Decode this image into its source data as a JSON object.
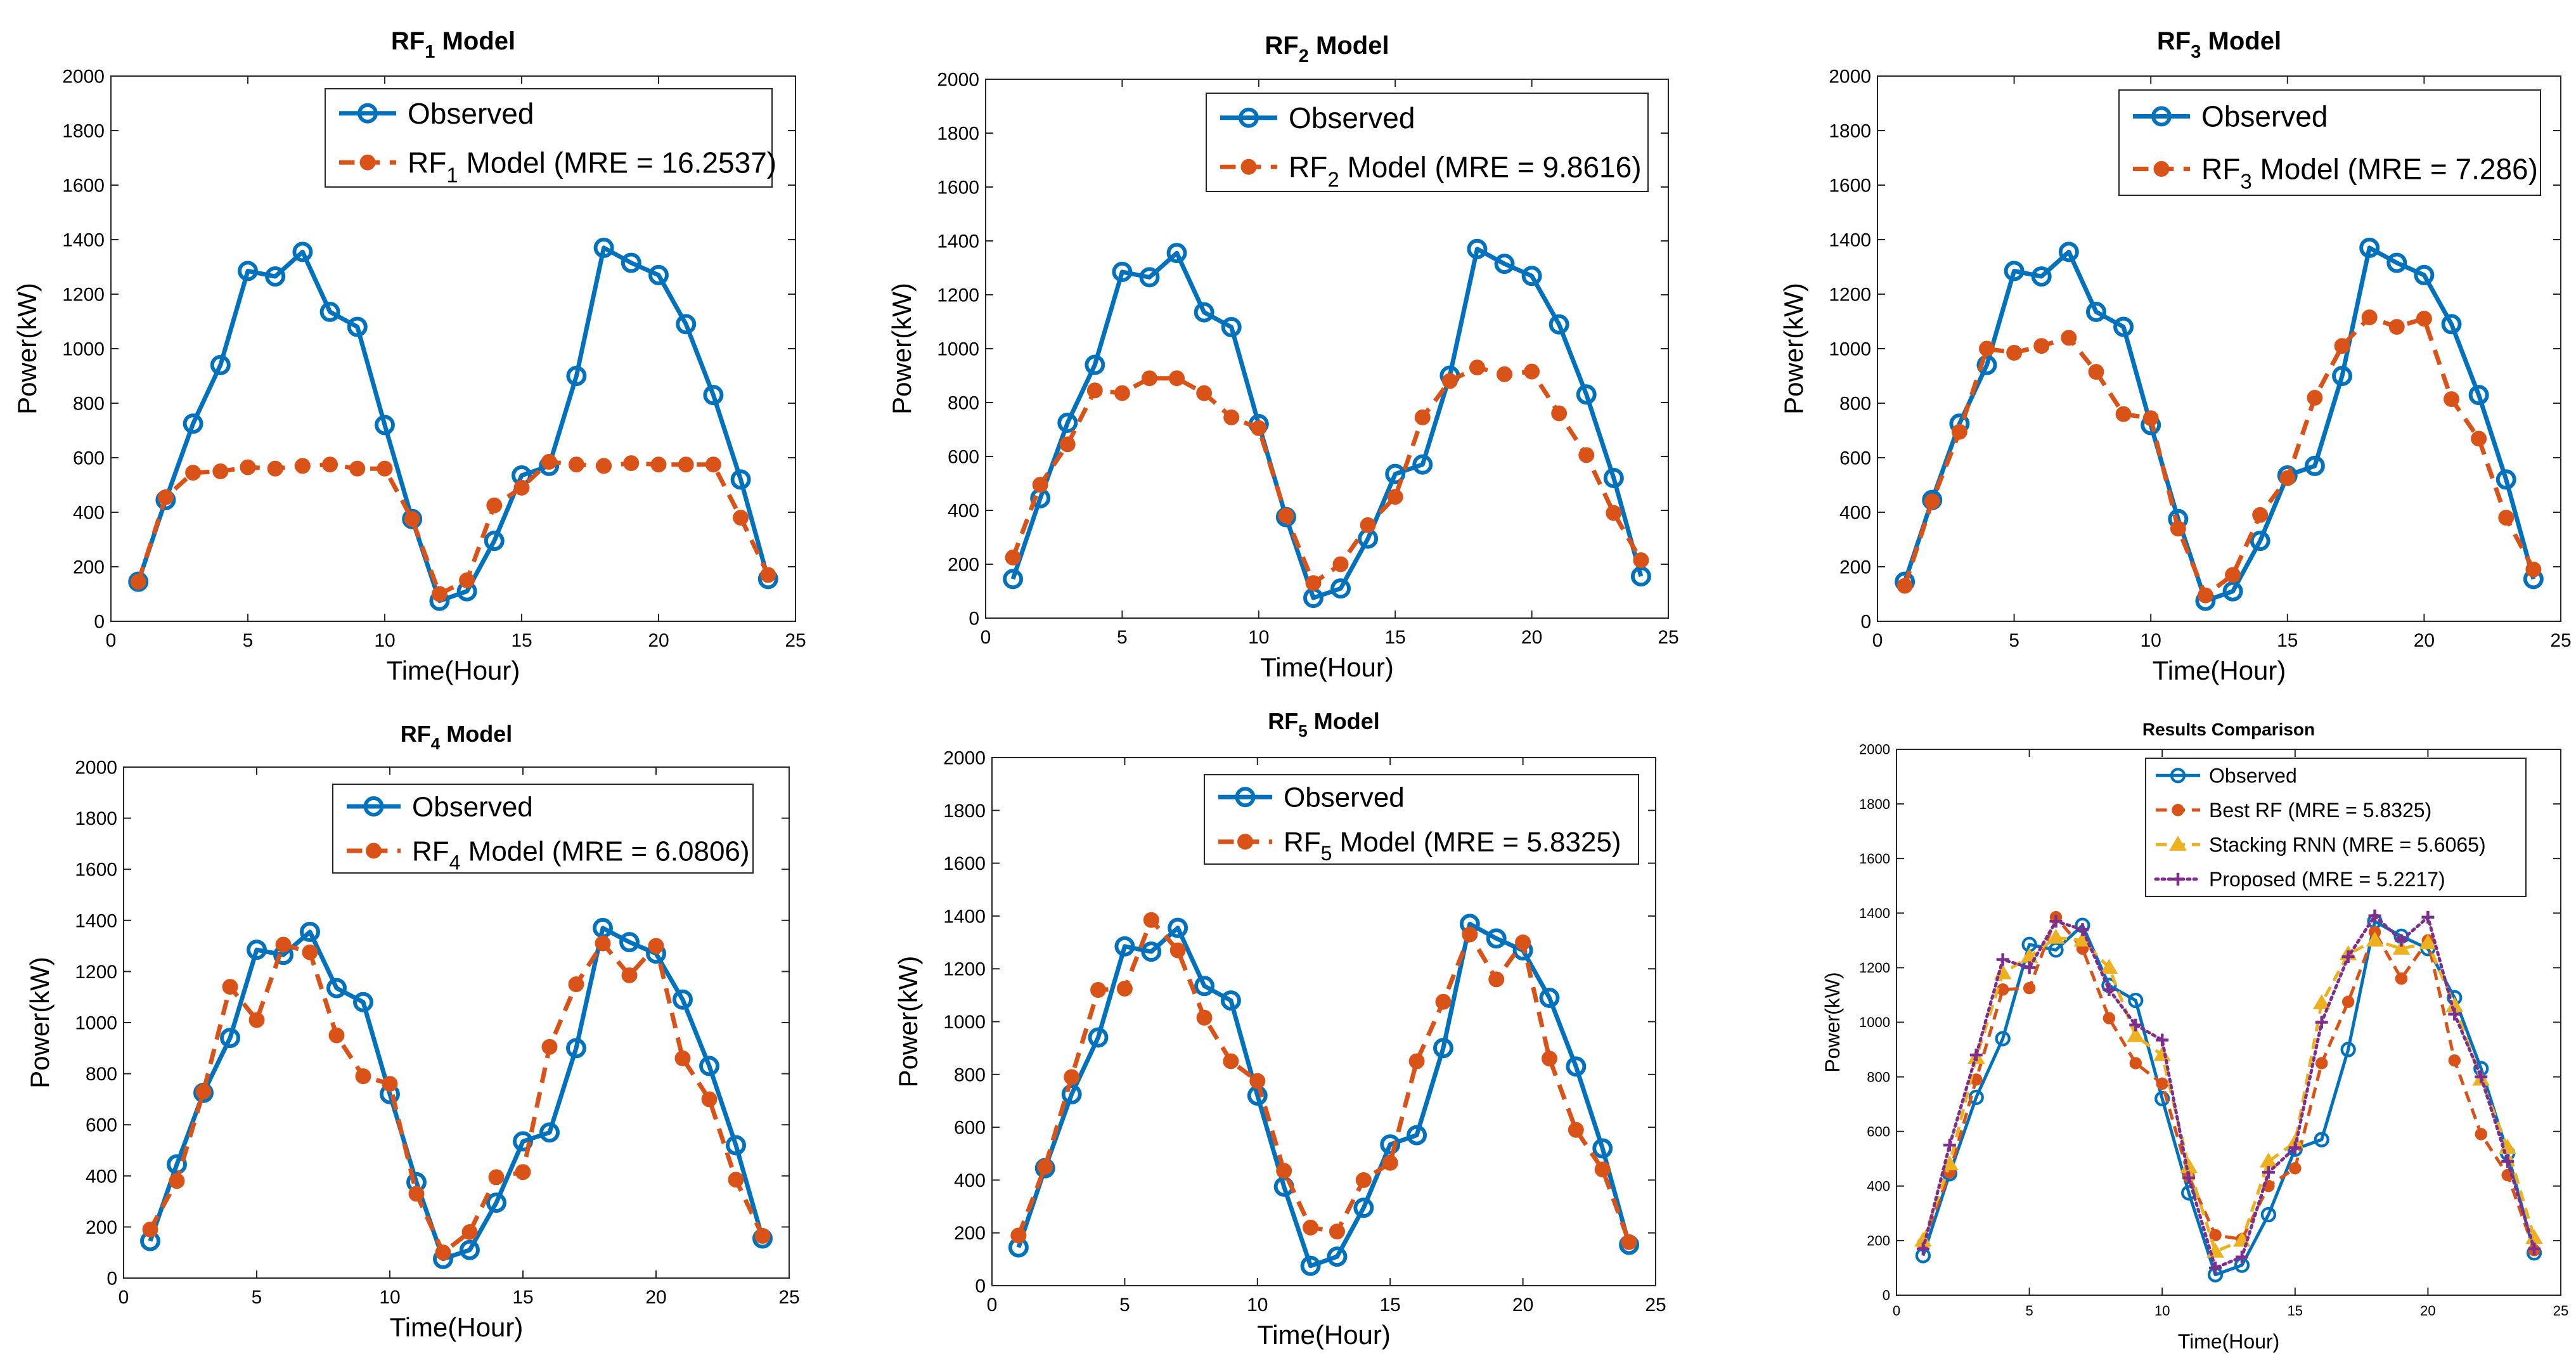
{
  "figure": {
    "panels": 6
  },
  "colors": {
    "observed": "#0072BD",
    "rf": "#D95319",
    "stacking": "#EDB120",
    "proposed": "#7E2F8E",
    "axis": "#262626"
  },
  "chart_data": [
    {
      "type": "line",
      "title": {
        "prefix": "RF",
        "sub": "1",
        "suffix": " Model"
      },
      "xlabel": "Time(Hour)",
      "ylabel": "Power(kW)",
      "xlim": [
        0,
        25
      ],
      "ylim": [
        0,
        2000
      ],
      "xticks": [
        0,
        5,
        10,
        15,
        20,
        25
      ],
      "yticks": [
        0,
        200,
        400,
        600,
        800,
        1000,
        1200,
        1400,
        1600,
        1800,
        2000
      ],
      "legend_location": "top-right",
      "x": [
        1,
        2,
        3,
        4,
        5,
        6,
        7,
        8,
        9,
        10,
        11,
        12,
        13,
        14,
        15,
        16,
        17,
        18,
        19,
        20,
        21,
        22,
        23,
        24
      ],
      "series": [
        {
          "name": "Observed",
          "legend": {
            "prefix": "Observed",
            "sub": "",
            "suffix": ""
          },
          "style": "observed",
          "values": [
            145,
            445,
            725,
            940,
            1285,
            1265,
            1355,
            1135,
            1080,
            720,
            375,
            75,
            110,
            295,
            535,
            570,
            900,
            1370,
            1315,
            1270,
            1090,
            830,
            520,
            155
          ]
        },
        {
          "name": "RF1 Model",
          "legend": {
            "prefix": "RF",
            "sub": "1",
            "suffix": " Model (MRE = 16.2537)"
          },
          "style": "rf",
          "values": [
            145,
            455,
            545,
            550,
            565,
            560,
            570,
            575,
            560,
            560,
            375,
            100,
            150,
            425,
            490,
            585,
            575,
            570,
            580,
            575,
            575,
            575,
            380,
            170
          ]
        }
      ]
    },
    {
      "type": "line",
      "title": {
        "prefix": "RF",
        "sub": "2",
        "suffix": " Model"
      },
      "xlabel": "Time(Hour)",
      "ylabel": "Power(kW)",
      "xlim": [
        0,
        25
      ],
      "ylim": [
        0,
        2000
      ],
      "xticks": [
        0,
        5,
        10,
        15,
        20,
        25
      ],
      "yticks": [
        0,
        200,
        400,
        600,
        800,
        1000,
        1200,
        1400,
        1600,
        1800,
        2000
      ],
      "legend_location": "top-right",
      "x": [
        1,
        2,
        3,
        4,
        5,
        6,
        7,
        8,
        9,
        10,
        11,
        12,
        13,
        14,
        15,
        16,
        17,
        18,
        19,
        20,
        21,
        22,
        23,
        24
      ],
      "series": [
        {
          "name": "Observed",
          "legend": {
            "prefix": "Observed",
            "sub": "",
            "suffix": ""
          },
          "style": "observed",
          "values": [
            145,
            445,
            725,
            940,
            1285,
            1265,
            1355,
            1135,
            1080,
            720,
            375,
            75,
            110,
            295,
            535,
            570,
            900,
            1370,
            1315,
            1270,
            1090,
            830,
            520,
            155
          ]
        },
        {
          "name": "RF2 Model",
          "legend": {
            "prefix": "RF",
            "sub": "2",
            "suffix": " Model (MRE = 9.8616)"
          },
          "style": "rf",
          "values": [
            225,
            495,
            645,
            845,
            835,
            890,
            890,
            835,
            745,
            705,
            380,
            130,
            200,
            345,
            450,
            745,
            880,
            930,
            905,
            915,
            760,
            605,
            390,
            215
          ]
        }
      ]
    },
    {
      "type": "line",
      "title": {
        "prefix": "RF",
        "sub": "3",
        "suffix": " Model"
      },
      "xlabel": "Time(Hour)",
      "ylabel": "Power(kW)",
      "xlim": [
        0,
        25
      ],
      "ylim": [
        0,
        2000
      ],
      "xticks": [
        0,
        5,
        10,
        15,
        20,
        25
      ],
      "yticks": [
        0,
        200,
        400,
        600,
        800,
        1000,
        1200,
        1400,
        1600,
        1800,
        2000
      ],
      "legend_location": "top-right",
      "x": [
        1,
        2,
        3,
        4,
        5,
        6,
        7,
        8,
        9,
        10,
        11,
        12,
        13,
        14,
        15,
        16,
        17,
        18,
        19,
        20,
        21,
        22,
        23,
        24
      ],
      "series": [
        {
          "name": "Observed",
          "legend": {
            "prefix": "Observed",
            "sub": "",
            "suffix": ""
          },
          "style": "observed",
          "values": [
            145,
            445,
            725,
            940,
            1285,
            1265,
            1355,
            1135,
            1080,
            720,
            375,
            75,
            110,
            295,
            535,
            570,
            900,
            1370,
            1315,
            1270,
            1090,
            830,
            520,
            155
          ]
        },
        {
          "name": "RF3 Model",
          "legend": {
            "prefix": "RF",
            "sub": "3",
            "suffix": " Model (MRE = 7.286)"
          },
          "style": "rf",
          "values": [
            130,
            440,
            695,
            1000,
            985,
            1010,
            1040,
            915,
            760,
            745,
            340,
            95,
            170,
            390,
            525,
            820,
            1010,
            1115,
            1080,
            1110,
            815,
            670,
            380,
            190
          ]
        }
      ]
    },
    {
      "type": "line",
      "title": {
        "prefix": "RF",
        "sub": "4",
        "suffix": " Model"
      },
      "xlabel": "Time(Hour)",
      "ylabel": "Power(kW)",
      "xlim": [
        0,
        25
      ],
      "ylim": [
        0,
        2000
      ],
      "xticks": [
        0,
        5,
        10,
        15,
        20,
        25
      ],
      "yticks": [
        0,
        200,
        400,
        600,
        800,
        1000,
        1200,
        1400,
        1600,
        1800,
        2000
      ],
      "legend_location": "top-right",
      "x": [
        1,
        2,
        3,
        4,
        5,
        6,
        7,
        8,
        9,
        10,
        11,
        12,
        13,
        14,
        15,
        16,
        17,
        18,
        19,
        20,
        21,
        22,
        23,
        24
      ],
      "series": [
        {
          "name": "Observed",
          "legend": {
            "prefix": "Observed",
            "sub": "",
            "suffix": ""
          },
          "style": "observed",
          "values": [
            145,
            445,
            725,
            940,
            1285,
            1265,
            1355,
            1135,
            1080,
            720,
            375,
            75,
            110,
            295,
            535,
            570,
            900,
            1370,
            1315,
            1270,
            1090,
            830,
            520,
            155
          ]
        },
        {
          "name": "RF4 Model",
          "legend": {
            "prefix": "RF",
            "sub": "4",
            "suffix": " Model (MRE = 6.0806)"
          },
          "style": "rf",
          "values": [
            190,
            380,
            730,
            1140,
            1010,
            1305,
            1275,
            950,
            790,
            760,
            330,
            100,
            180,
            395,
            415,
            905,
            1150,
            1310,
            1185,
            1300,
            860,
            700,
            385,
            165
          ]
        }
      ]
    },
    {
      "type": "line",
      "title": {
        "prefix": "RF",
        "sub": "5",
        "suffix": " Model"
      },
      "xlabel": "Time(Hour)",
      "ylabel": "Power(kW)",
      "xlim": [
        0,
        25
      ],
      "ylim": [
        0,
        2000
      ],
      "xticks": [
        0,
        5,
        10,
        15,
        20,
        25
      ],
      "yticks": [
        0,
        200,
        400,
        600,
        800,
        1000,
        1200,
        1400,
        1600,
        1800,
        2000
      ],
      "legend_location": "top-right",
      "x": [
        1,
        2,
        3,
        4,
        5,
        6,
        7,
        8,
        9,
        10,
        11,
        12,
        13,
        14,
        15,
        16,
        17,
        18,
        19,
        20,
        21,
        22,
        23,
        24
      ],
      "series": [
        {
          "name": "Observed",
          "legend": {
            "prefix": "Observed",
            "sub": "",
            "suffix": ""
          },
          "style": "observed",
          "values": [
            145,
            445,
            725,
            940,
            1285,
            1265,
            1355,
            1135,
            1080,
            720,
            375,
            75,
            110,
            295,
            535,
            570,
            900,
            1370,
            1315,
            1270,
            1090,
            830,
            520,
            155
          ]
        },
        {
          "name": "RF5 Model",
          "legend": {
            "prefix": "RF",
            "sub": "5",
            "suffix": " Model (MRE = 5.8325)"
          },
          "style": "rf",
          "values": [
            190,
            450,
            790,
            1120,
            1125,
            1385,
            1270,
            1015,
            850,
            775,
            435,
            220,
            205,
            400,
            465,
            850,
            1075,
            1330,
            1160,
            1300,
            860,
            590,
            440,
            165
          ]
        }
      ]
    },
    {
      "type": "line",
      "title": {
        "prefix": "Results Comparison",
        "sub": "",
        "suffix": ""
      },
      "xlabel": "Time(Hour)",
      "ylabel": "Power(kW)",
      "xlim": [
        0,
        25
      ],
      "ylim": [
        0,
        2000
      ],
      "xticks": [
        0,
        5,
        10,
        15,
        20,
        25
      ],
      "yticks": [
        0,
        200,
        400,
        600,
        800,
        1000,
        1200,
        1400,
        1600,
        1800,
        2000
      ],
      "legend_location": "top-right",
      "x": [
        1,
        2,
        3,
        4,
        5,
        6,
        7,
        8,
        9,
        10,
        11,
        12,
        13,
        14,
        15,
        16,
        17,
        18,
        19,
        20,
        21,
        22,
        23,
        24
      ],
      "series": [
        {
          "name": "Observed",
          "legend": {
            "prefix": "Observed",
            "sub": "",
            "suffix": ""
          },
          "style": "observed",
          "values": [
            145,
            445,
            725,
            940,
            1285,
            1265,
            1355,
            1135,
            1080,
            720,
            375,
            75,
            110,
            295,
            535,
            570,
            900,
            1370,
            1315,
            1270,
            1090,
            830,
            520,
            155
          ]
        },
        {
          "name": "Best RF",
          "legend": {
            "prefix": "Best RF (MRE = 5.8325)",
            "sub": "",
            "suffix": ""
          },
          "style": "rf",
          "values": [
            190,
            450,
            790,
            1120,
            1125,
            1385,
            1270,
            1015,
            850,
            775,
            435,
            220,
            205,
            400,
            465,
            850,
            1075,
            1330,
            1160,
            1300,
            860,
            590,
            440,
            165
          ]
        },
        {
          "name": "Stacking RNN",
          "legend": {
            "prefix": "Stacking RNN (MRE = 5.6065)",
            "sub": "",
            "suffix": ""
          },
          "style": "stacking",
          "values": [
            200,
            480,
            870,
            1180,
            1240,
            1310,
            1300,
            1200,
            950,
            880,
            470,
            160,
            200,
            490,
            560,
            1070,
            1250,
            1300,
            1270,
            1290,
            1060,
            790,
            540,
            210
          ]
        },
        {
          "name": "Proposed",
          "legend": {
            "prefix": "Proposed (MRE = 5.2217)",
            "sub": "",
            "suffix": ""
          },
          "style": "proposed",
          "values": [
            170,
            550,
            880,
            1230,
            1200,
            1370,
            1340,
            1120,
            990,
            935,
            430,
            100,
            140,
            450,
            540,
            1000,
            1240,
            1390,
            1300,
            1385,
            1030,
            800,
            490,
            170
          ]
        }
      ]
    }
  ]
}
